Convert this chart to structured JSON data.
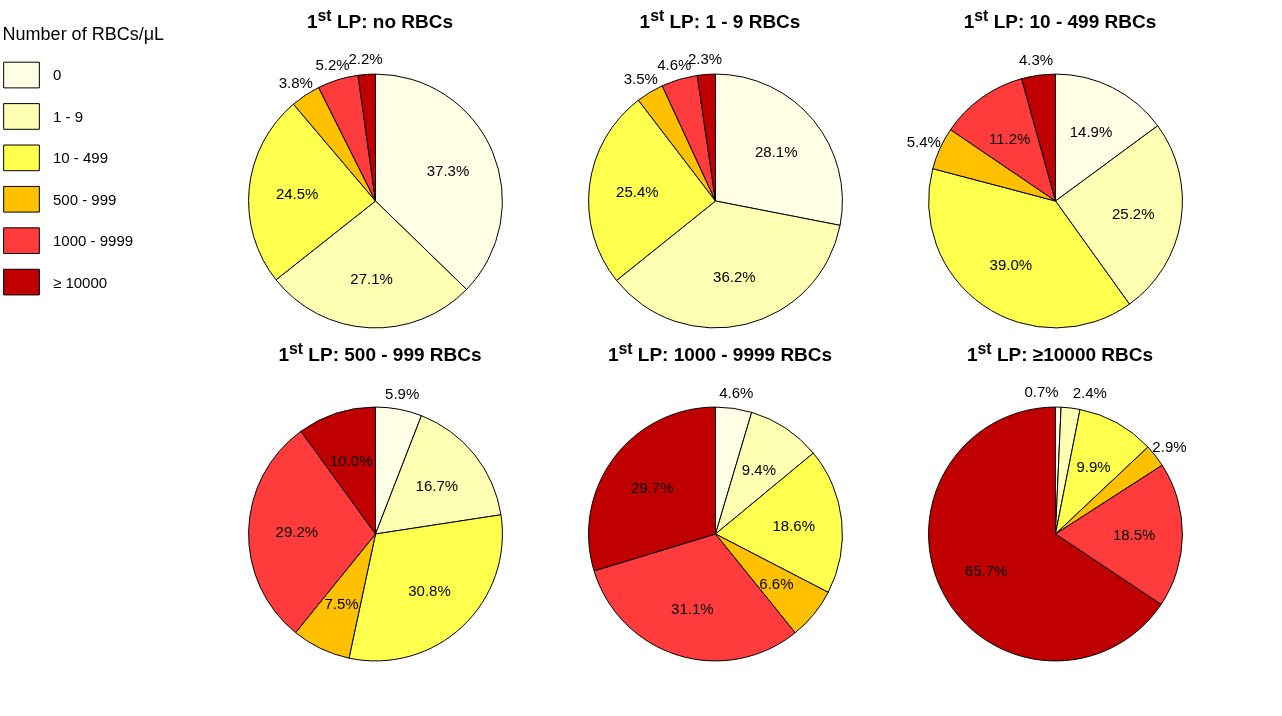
{
  "chart_data": [
    {
      "type": "pie",
      "title": "1$^{st}$ LP: no RBCs",
      "legend_title": "Number of RBCs/μL",
      "legend": "left",
      "categories": [
        "0",
        "1 - 9",
        "10 - 499",
        "500 - 999",
        "1000 - 9999",
        "≥ 10000"
      ],
      "colors": [
        "#ffffe5",
        "#ffffb3",
        "#ffff4d",
        "#ffc000",
        "#ff3b3b",
        "#c00000"
      ],
      "values": [
        37.3,
        27.1,
        24.5,
        3.8,
        5.2,
        2.2
      ],
      "value_labels": [
        "37.3%",
        "27.1%",
        "24.5%",
        "3.8%",
        "5.2%",
        "2.2%"
      ]
    },
    {
      "type": "pie",
      "title": "1$^{st}$ LP: 1 - 9 RBCs",
      "colors": [
        "#ffffe5",
        "#ffffb3",
        "#ffff4d",
        "#ffc000",
        "#ff3b3b",
        "#c00000"
      ],
      "values": [
        28.1,
        36.2,
        25.4,
        3.5,
        4.6,
        2.3
      ],
      "value_labels": [
        "28.1%",
        "36.2%",
        "25.4%",
        "3.5%",
        "4.6%",
        "2.3%"
      ]
    },
    {
      "type": "pie",
      "title": "1$^{st}$ LP: 10 - 499 RBCs",
      "colors": [
        "#ffffe5",
        "#ffffb3",
        "#ffff4d",
        "#ffc000",
        "#ff3b3b",
        "#c00000"
      ],
      "values": [
        14.9,
        25.2,
        39.0,
        5.4,
        11.2,
        4.3
      ],
      "value_labels": [
        "14.9%",
        "25.2%",
        "39.0%",
        "5.4%",
        "11.2%",
        "4.3%"
      ]
    },
    {
      "type": "pie",
      "title": "1$^{st}$ LP: 500 - 999 RBCs",
      "colors": [
        "#ffffe5",
        "#ffffb3",
        "#ffff4d",
        "#ffc000",
        "#ff3b3b",
        "#c00000"
      ],
      "values": [
        5.9,
        16.7,
        30.8,
        7.5,
        29.2,
        10.0
      ],
      "value_labels": [
        "5.9%",
        "16.7%",
        "30.8%",
        "7.5%",
        "29.2%",
        "10.0%"
      ]
    },
    {
      "type": "pie",
      "title": "1$^{st}$ LP: 1000 - 9999 RBCs",
      "colors": [
        "#ffffe5",
        "#ffffb3",
        "#ffff4d",
        "#ffc000",
        "#ff3b3b",
        "#c00000"
      ],
      "values": [
        4.6,
        9.4,
        18.6,
        6.6,
        31.1,
        29.7
      ],
      "value_labels": [
        "4.6%",
        "9.4%",
        "18.6%",
        "6.6%",
        "31.1%",
        "29.7%"
      ]
    },
    {
      "type": "pie",
      "title": "1$^{st}$ LP: ≥10000 RBCs",
      "colors": [
        "#ffffe5",
        "#ffffb3",
        "#ffff4d",
        "#ffc000",
        "#ff3b3b",
        "#c00000"
      ],
      "values": [
        0.7,
        2.4,
        9.9,
        2.9,
        18.5,
        65.7
      ],
      "value_labels": [
        "0.7%",
        "2.4%",
        "9.9%",
        "2.9%",
        "18.5%",
        "65.7%"
      ]
    }
  ]
}
